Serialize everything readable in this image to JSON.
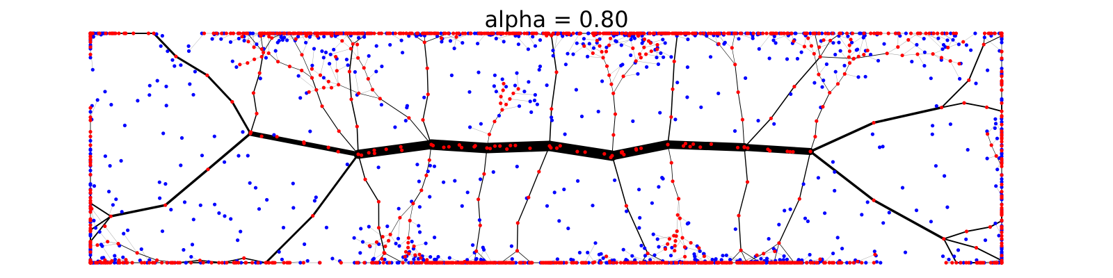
{
  "figure": {
    "title": "alpha = 0.80"
  },
  "network": {
    "type": "branching-network",
    "node_colors": {
      "internal": "#ff0000",
      "leaf": "#0000ff"
    },
    "edge_color": "#000000",
    "background": "#ffffff"
  }
}
